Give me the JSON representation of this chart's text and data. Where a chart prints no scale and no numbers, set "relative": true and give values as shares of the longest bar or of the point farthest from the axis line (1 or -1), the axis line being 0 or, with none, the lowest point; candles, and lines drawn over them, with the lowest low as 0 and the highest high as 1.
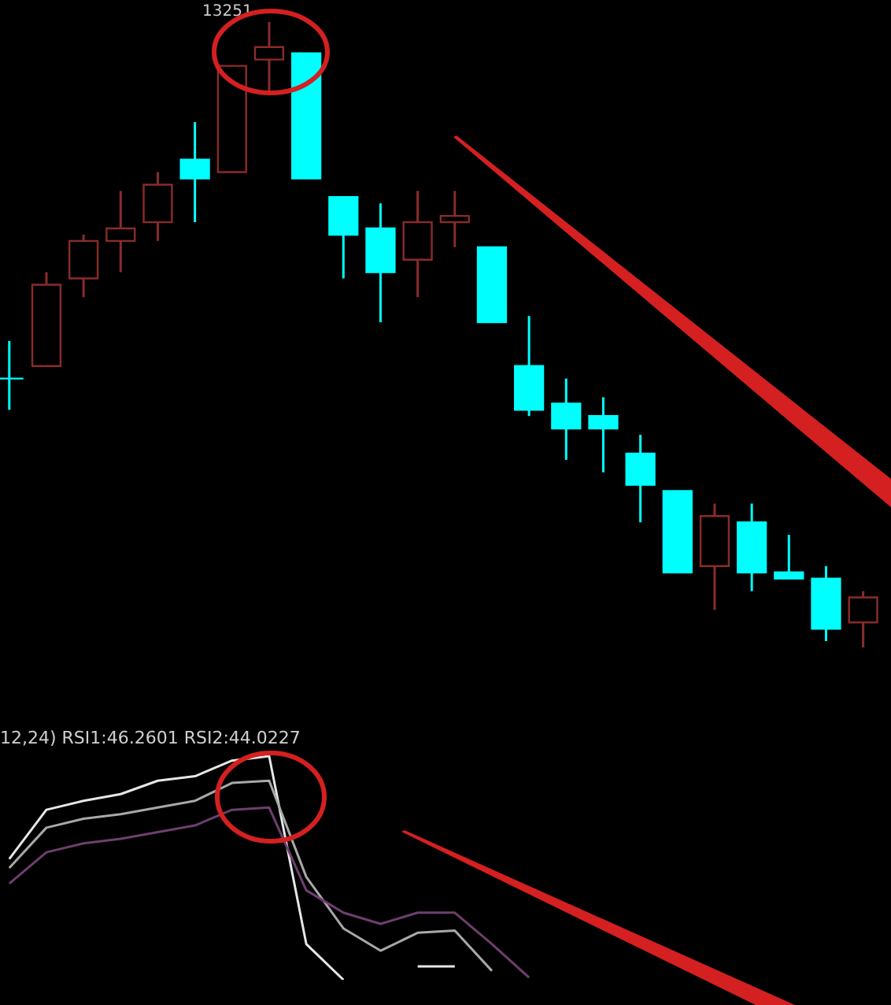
{
  "chart_data": [
    {
      "type": "candlestick",
      "relative": true,
      "categories": [
        null,
        null,
        null,
        null,
        null,
        null,
        null,
        null,
        null,
        null,
        null,
        null,
        null,
        null,
        null,
        null,
        null,
        null,
        null,
        null,
        null,
        null,
        null,
        null
      ],
      "ohlc": [
        [
          0.43,
          0.49,
          0.38,
          0.43
        ],
        [
          0.45,
          0.6,
          0.45,
          0.58
        ],
        [
          0.59,
          0.66,
          0.56,
          0.65
        ],
        [
          0.65,
          0.73,
          0.6,
          0.67
        ],
        [
          0.68,
          0.76,
          0.65,
          0.74
        ],
        [
          0.78,
          0.84,
          0.68,
          0.75
        ],
        [
          0.76,
          0.93,
          0.76,
          0.93
        ],
        [
          0.94,
          1,
          0.89,
          0.96
        ],
        [
          0.95,
          0.95,
          0.75,
          0.75
        ],
        [
          0.72,
          0.72,
          0.59,
          0.66
        ],
        [
          0.67,
          0.71,
          0.52,
          0.6
        ],
        [
          0.62,
          0.73,
          0.56,
          0.68
        ],
        [
          0.68,
          0.73,
          0.64,
          0.69
        ],
        [
          0.64,
          0.64,
          0.52,
          0.52
        ],
        [
          0.45,
          0.53,
          0.37,
          0.38
        ],
        [
          0.39,
          0.43,
          0.3,
          0.35
        ],
        [
          0.37,
          0.4,
          0.28,
          0.35
        ],
        [
          0.31,
          0.34,
          0.2,
          0.26
        ],
        [
          0.25,
          0.25,
          0.12,
          0.12
        ],
        [
          0.13,
          0.23,
          0.06,
          0.21
        ],
        [
          0.2,
          0.23,
          0.09,
          0.12
        ],
        [
          0.12,
          0.18,
          0.11,
          0.11
        ],
        [
          0.11,
          0.13,
          0.01,
          0.03
        ],
        [
          0.04,
          0.09,
          0,
          0.08
        ]
      ],
      "colors": [
        "#00ffff",
        "#8b2b2b",
        "#8b2b2b",
        "#8b2b2b",
        "#8b2b2b",
        "#00ffff",
        "#8b2b2b",
        "#8b2b2b",
        "#00ffff",
        "#00ffff",
        "#00ffff",
        "#8b2b2b",
        "#8b2b2b",
        "#00ffff",
        "#00ffff",
        "#00ffff",
        "#00ffff",
        "#00ffff",
        "#00ffff",
        "#8b2b2b",
        "#00ffff",
        "#00ffff",
        "#00ffff",
        "#8b2b2b"
      ],
      "annotations": [
        "13251"
      ]
    },
    {
      "type": "line",
      "relative": true,
      "marker": "none",
      "line_style": "solid",
      "title": "12,24) RSI1:46.2601 RSI2:44.0227",
      "categories": [
        null,
        null,
        null,
        null,
        null,
        null,
        null,
        null,
        null,
        null,
        null,
        null,
        null,
        null,
        null,
        null,
        null,
        null,
        null,
        null,
        null,
        null,
        null,
        null
      ],
      "series": [
        {
          "color": "#e6e6e6",
          "values": [
            0.54,
            0.76,
            0.8,
            0.83,
            0.89,
            0.91,
            0.98,
            1,
            0.16,
            0,
            null,
            0.06,
            0.06,
            null,
            null,
            null,
            null,
            null,
            null,
            null,
            null,
            null,
            null,
            null
          ]
        },
        {
          "color": "#a8a8a8",
          "values": [
            0.5,
            0.68,
            0.72,
            0.74,
            0.77,
            0.8,
            0.88,
            0.89,
            0.46,
            0.23,
            0.13,
            0.21,
            0.22,
            0.04,
            null,
            null,
            null,
            null,
            null,
            null,
            null,
            null,
            null,
            null
          ]
        },
        {
          "color": "#6e3f6e",
          "values": [
            0.43,
            0.57,
            0.61,
            0.63,
            0.66,
            0.69,
            0.76,
            0.77,
            0.4,
            0.3,
            0.25,
            0.3,
            0.3,
            0.16,
            0.01,
            null,
            null,
            null,
            null,
            null,
            null,
            null,
            null,
            null
          ]
        }
      ]
    }
  ]
}
